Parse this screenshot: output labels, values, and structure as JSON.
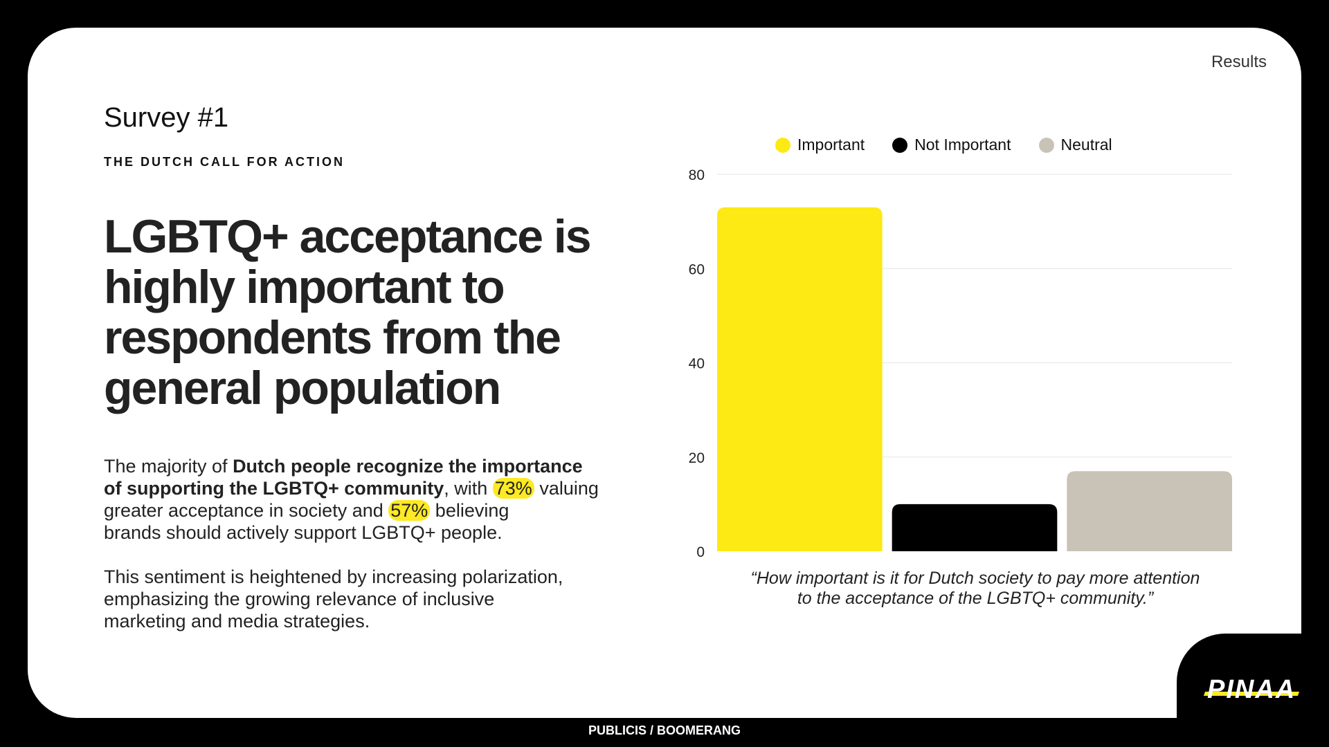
{
  "header": {
    "results_label": "Results"
  },
  "survey": {
    "title": "Survey #1",
    "kicker": "THE DUTCH CALL FOR ACTION",
    "headline_lines": [
      "LGBTQ+ acceptance is",
      "highly important to",
      "respondents from the",
      "general population"
    ]
  },
  "body": {
    "p1": {
      "l1_a": "The majority of ",
      "l1_b": "Dutch people recognize the importance",
      "l2_a": "of supporting the LGBTQ+ community",
      "l2_b": ", with ",
      "stat1": "73%",
      "l2_c": " valuing",
      "l3_a": "greater acceptance in society and ",
      "stat2": "57%",
      "l3_b": " believing",
      "l4": "brands should actively support LGBTQ+ people."
    },
    "p2": {
      "l1": "This sentiment is heightened by increasing polarization,",
      "l2": "emphasizing the growing relevance of inclusive",
      "l3": "marketing and media strategies."
    }
  },
  "chart_data": {
    "type": "bar",
    "categories": [
      "Important",
      "Not Important",
      "Neutral"
    ],
    "values": [
      73,
      10,
      17
    ],
    "colors": [
      "#fde914",
      "#000000",
      "#c9c3b7"
    ],
    "legend": [
      "Important",
      "Not Important",
      "Neutral"
    ],
    "legend_position": "top",
    "yticks": [
      0,
      20,
      40,
      60,
      80
    ],
    "ylim": [
      0,
      80
    ],
    "grid": true,
    "caption_lines": [
      "“How important is it for Dutch society to pay more attention",
      "to the acceptance of the LGBTQ+ community.”"
    ]
  },
  "footer": {
    "credit": "PUBLICIS / BOOMERANG",
    "logo": "PINAA"
  }
}
